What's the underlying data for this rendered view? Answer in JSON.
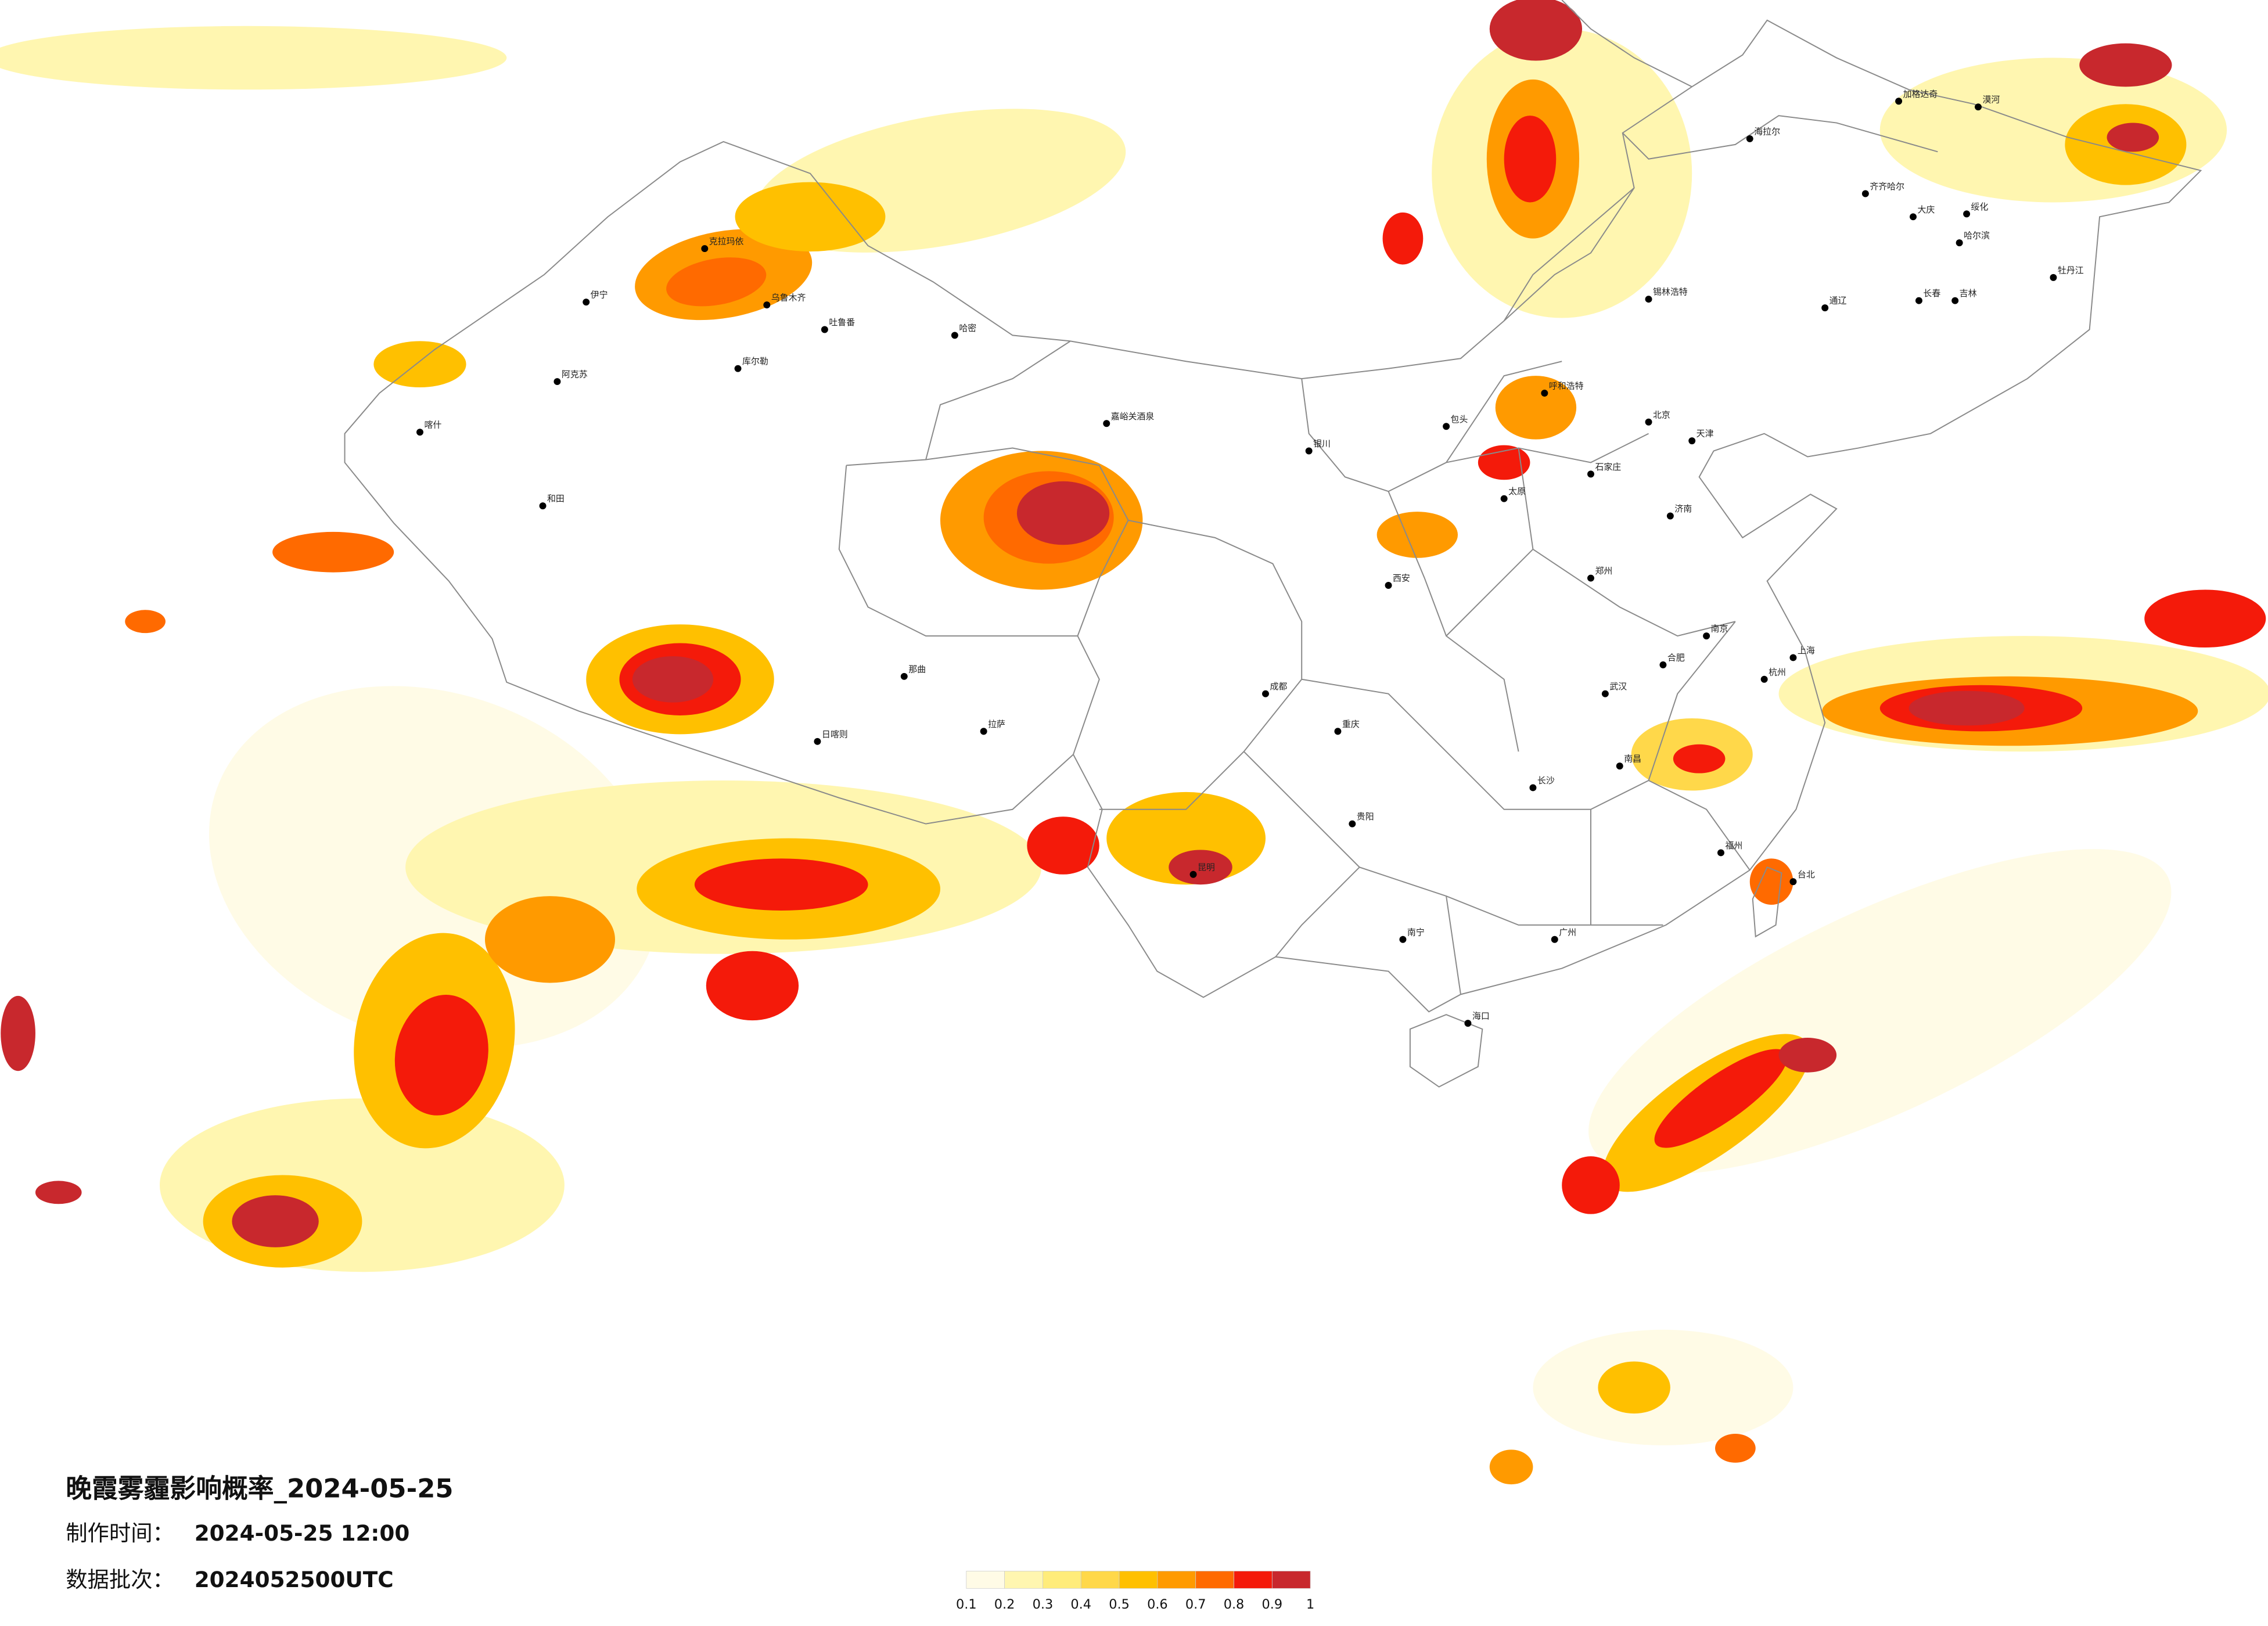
{
  "title": "晚霞雾霾影响概率_2024-05-25",
  "production_time": {
    "label": "制作时间：",
    "value": "2024-05-25 12:00"
  },
  "data_batch": {
    "label": "数据批次：",
    "value": "2024052500UTC"
  },
  "colorbar": {
    "colors": [
      "#fffbe6",
      "#fff6b0",
      "#ffec7a",
      "#ffd84a",
      "#ffc000",
      "#ff9a00",
      "#ff6a00",
      "#f41a0a",
      "#c8282d"
    ],
    "ticks": [
      0.1,
      0.2,
      0.3,
      0.4,
      0.5,
      0.6,
      0.7,
      0.8,
      0.9,
      1
    ]
  },
  "cities": [
    "漠河",
    "加格达奇",
    "海拉尔",
    "齐齐哈尔",
    "大庆",
    "绥化",
    "哈尔滨",
    "牡丹江",
    "长春",
    "吉林",
    "通辽",
    "锡林浩特",
    "呼和浩特",
    "包头",
    "北京",
    "天津",
    "石家庄",
    "太原",
    "济南",
    "郑州",
    "西安",
    "银川",
    "嘉峪关酒泉",
    "哈密",
    "吐鲁番",
    "乌鲁木齐",
    "克拉玛依",
    "伊宁",
    "库尔勒",
    "阿克苏",
    "喀什",
    "和田",
    "那曲",
    "拉萨",
    "日喀则",
    "成都",
    "重庆",
    "贵阳",
    "昆明",
    "南宁",
    "海口",
    "广州",
    "福州",
    "杭州",
    "南京",
    "上海",
    "武汉",
    "长沙",
    "南昌",
    "合肥",
    "台北"
  ]
}
